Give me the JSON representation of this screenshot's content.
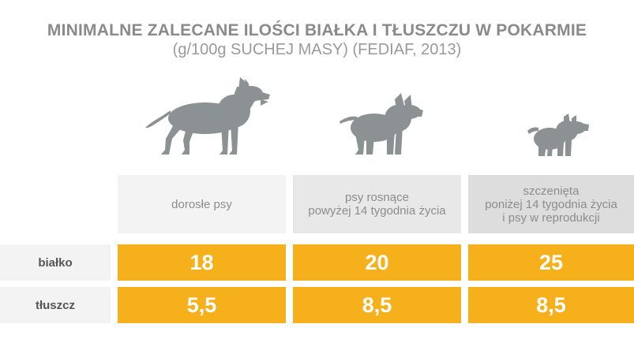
{
  "title": "MINIMALNE ZALECANE ILOŚCI BIAŁKA I TŁUSZCZU W POKARMIE",
  "subtitle": "(g/100g SUCHEJ MASY) (FEDIAF, 2013)",
  "colors": {
    "accent": "#f5b01c",
    "dog": "#8c9193",
    "header_bg": [
      "#f3f3f3",
      "#e8e8e8",
      "#dddddd"
    ],
    "label_bg": "#f3f3f3"
  },
  "chart_data": {
    "type": "table",
    "title": "MINIMALNE ZALECANE ILOŚCI BIAŁKA I TŁUSZCZU W POKARMIE",
    "subtitle": "(g/100g SUCHEJ MASY) (FEDIAF, 2013)",
    "categories": [
      [
        "dorosłe psy"
      ],
      [
        "psy rosnące",
        "powyżej 14 tygodnia życia"
      ],
      [
        "szczenięta",
        "poniżej 14 tygodnia życia",
        "i psy w reprodukcji"
      ]
    ],
    "series": [
      {
        "name": "białko",
        "values": [
          "18",
          "20",
          "25"
        ]
      },
      {
        "name": "tłuszcz",
        "values": [
          "5,5",
          "8,5",
          "8,5"
        ]
      }
    ],
    "icons": [
      "adult-dog-icon",
      "growing-dog-icon",
      "puppy-icon"
    ]
  }
}
